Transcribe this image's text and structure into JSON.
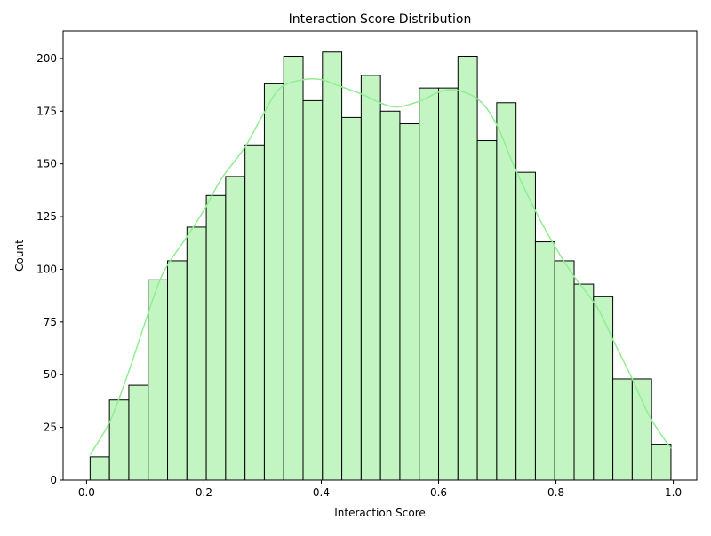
{
  "chart_data": {
    "type": "bar",
    "title": "Interaction Score Distribution",
    "xlabel": "Interaction Score",
    "ylabel": "Count",
    "xlim": [
      -0.04,
      1.04
    ],
    "ylim": [
      0,
      213
    ],
    "xticks": [
      0.0,
      0.2,
      0.4,
      0.6,
      0.8,
      1.0
    ],
    "xtick_labels": [
      "0.0",
      "0.2",
      "0.4",
      "0.6",
      "0.8",
      "1.0"
    ],
    "yticks": [
      0,
      25,
      50,
      75,
      100,
      125,
      150,
      175,
      200
    ],
    "ytick_labels": [
      "0",
      "25",
      "50",
      "75",
      "100",
      "125",
      "150",
      "175",
      "200"
    ],
    "grid": false,
    "bins": {
      "start": 0.006,
      "width": 0.033,
      "counts": [
        11,
        38,
        45,
        95,
        104,
        120,
        135,
        144,
        159,
        188,
        201,
        180,
        203,
        172,
        192,
        175,
        169,
        186,
        186,
        201,
        161,
        179,
        146,
        113,
        104,
        93,
        87,
        48,
        48,
        17
      ]
    },
    "kde": {
      "x": [
        0.006,
        0.04,
        0.07,
        0.1,
        0.13,
        0.17,
        0.2,
        0.23,
        0.27,
        0.3,
        0.33,
        0.37,
        0.4,
        0.43,
        0.47,
        0.5,
        0.53,
        0.57,
        0.6,
        0.63,
        0.67,
        0.7,
        0.73,
        0.77,
        0.8,
        0.83,
        0.87,
        0.9,
        0.93,
        0.96,
        0.996
      ],
      "y": [
        12,
        28,
        50,
        75,
        98,
        115,
        128,
        143,
        158,
        173,
        186,
        190,
        190,
        187,
        183,
        179,
        177,
        180,
        184,
        185,
        180,
        168,
        148,
        125,
        110,
        97,
        82,
        65,
        48,
        30,
        15
      ]
    },
    "colors": {
      "bar_fill": "#c3f5c3",
      "bar_edge": "#000000",
      "kde_line": "#90ee90"
    }
  }
}
